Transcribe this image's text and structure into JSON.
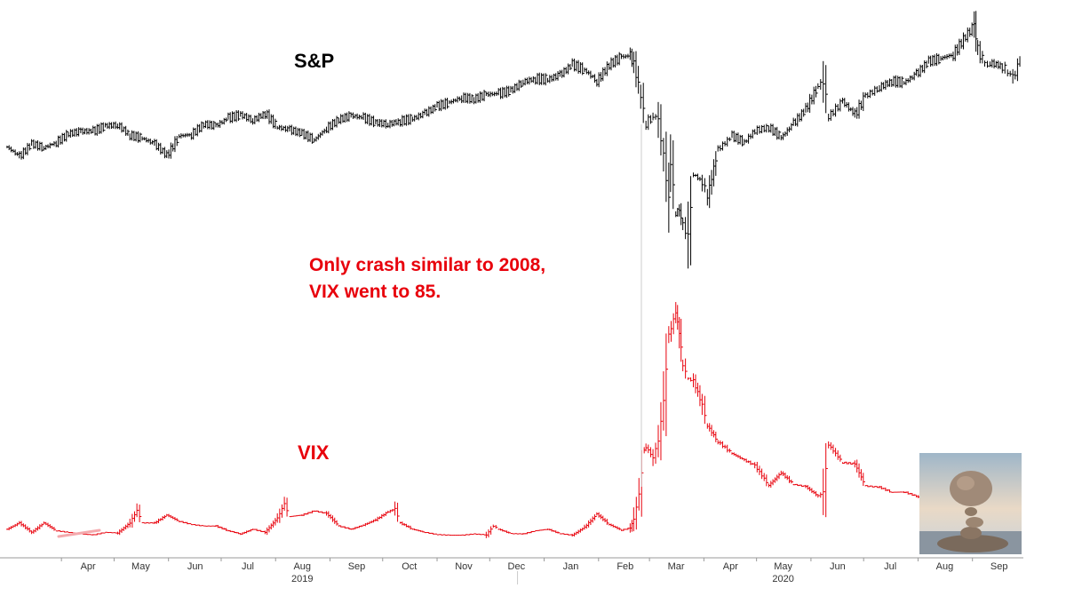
{
  "chart_data": [
    {
      "type": "ohlc",
      "name": "S&P",
      "label": "S&P",
      "color": "#000000",
      "ylim": [
        2100,
        3600
      ],
      "points": [
        [
          "2019-03-01",
          2805
        ],
        [
          "2019-03-08",
          2745
        ],
        [
          "2019-03-15",
          2825
        ],
        [
          "2019-03-22",
          2800
        ],
        [
          "2019-03-29",
          2835
        ],
        [
          "2019-04-05",
          2890
        ],
        [
          "2019-04-12",
          2905
        ],
        [
          "2019-04-19",
          2905
        ],
        [
          "2019-04-26",
          2940
        ],
        [
          "2019-05-03",
          2945
        ],
        [
          "2019-05-10",
          2880
        ],
        [
          "2019-05-17",
          2860
        ],
        [
          "2019-05-24",
          2825
        ],
        [
          "2019-05-31",
          2750
        ],
        [
          "2019-06-07",
          2875
        ],
        [
          "2019-06-14",
          2885
        ],
        [
          "2019-06-21",
          2950
        ],
        [
          "2019-06-28",
          2940
        ],
        [
          "2019-07-05",
          2990
        ],
        [
          "2019-07-12",
          3010
        ],
        [
          "2019-07-19",
          2975
        ],
        [
          "2019-07-26",
          3020
        ],
        [
          "2019-08-02",
          2930
        ],
        [
          "2019-08-09",
          2915
        ],
        [
          "2019-08-16",
          2890
        ],
        [
          "2019-08-23",
          2850
        ],
        [
          "2019-08-30",
          2925
        ],
        [
          "2019-09-06",
          2980
        ],
        [
          "2019-09-13",
          3005
        ],
        [
          "2019-09-20",
          2990
        ],
        [
          "2019-09-27",
          2960
        ],
        [
          "2019-10-04",
          2950
        ],
        [
          "2019-10-11",
          2970
        ],
        [
          "2019-10-18",
          2985
        ],
        [
          "2019-10-25",
          3020
        ],
        [
          "2019-11-01",
          3065
        ],
        [
          "2019-11-08",
          3090
        ],
        [
          "2019-11-15",
          3120
        ],
        [
          "2019-11-22",
          3110
        ],
        [
          "2019-11-29",
          3140
        ],
        [
          "2019-12-06",
          3145
        ],
        [
          "2019-12-13",
          3165
        ],
        [
          "2019-12-20",
          3220
        ],
        [
          "2019-12-27",
          3240
        ],
        [
          "2020-01-03",
          3235
        ],
        [
          "2020-01-10",
          3265
        ],
        [
          "2020-01-17",
          3330
        ],
        [
          "2020-01-24",
          3295
        ],
        [
          "2020-01-31",
          3225
        ],
        [
          "2020-02-07",
          3330
        ],
        [
          "2020-02-14",
          3380
        ],
        [
          "2020-02-19",
          3386
        ],
        [
          "2020-02-21",
          3335
        ],
        [
          "2020-02-25",
          3130
        ],
        [
          "2020-02-28",
          2955
        ],
        [
          "2020-03-03",
          3005
        ],
        [
          "2020-03-06",
          2970
        ],
        [
          "2020-03-09",
          2745
        ],
        [
          "2020-03-12",
          2480
        ],
        [
          "2020-03-13",
          2710
        ],
        [
          "2020-03-16",
          2385
        ],
        [
          "2020-03-18",
          2400
        ],
        [
          "2020-03-20",
          2305
        ],
        [
          "2020-03-23",
          2237
        ],
        [
          "2020-03-26",
          2630
        ],
        [
          "2020-03-31",
          2585
        ],
        [
          "2020-04-03",
          2490
        ],
        [
          "2020-04-09",
          2790
        ],
        [
          "2020-04-17",
          2875
        ],
        [
          "2020-04-24",
          2835
        ],
        [
          "2020-04-30",
          2910
        ],
        [
          "2020-05-08",
          2930
        ],
        [
          "2020-05-15",
          2865
        ],
        [
          "2020-05-22",
          2955
        ],
        [
          "2020-05-29",
          3045
        ],
        [
          "2020-06-05",
          3195
        ],
        [
          "2020-06-08",
          3232
        ],
        [
          "2020-06-11",
          3000
        ],
        [
          "2020-06-19",
          3095
        ],
        [
          "2020-06-26",
          3010
        ],
        [
          "2020-07-02",
          3130
        ],
        [
          "2020-07-10",
          3185
        ],
        [
          "2020-07-17",
          3225
        ],
        [
          "2020-07-24",
          3215
        ],
        [
          "2020-07-31",
          3270
        ],
        [
          "2020-08-07",
          3350
        ],
        [
          "2020-08-14",
          3370
        ],
        [
          "2020-08-21",
          3395
        ],
        [
          "2020-08-28",
          3510
        ],
        [
          "2020-09-02",
          3580
        ],
        [
          "2020-09-04",
          3425
        ],
        [
          "2020-09-08",
          3330
        ],
        [
          "2020-09-11",
          3340
        ],
        [
          "2020-09-18",
          3320
        ],
        [
          "2020-09-21",
          3280
        ],
        [
          "2020-09-24",
          3245
        ],
        [
          "2020-09-28",
          3350
        ]
      ]
    },
    {
      "type": "ohlc",
      "name": "VIX",
      "label": "VIX",
      "color": "#e8000b",
      "ylim": [
        10,
        86
      ],
      "points": [
        [
          "2019-03-01",
          14
        ],
        [
          "2019-03-08",
          16
        ],
        [
          "2019-03-15",
          13
        ],
        [
          "2019-03-22",
          16
        ],
        [
          "2019-03-29",
          13.5
        ],
        [
          "2019-04-05",
          13
        ],
        [
          "2019-04-12",
          12.5
        ],
        [
          "2019-04-19",
          12.2
        ],
        [
          "2019-04-26",
          13
        ],
        [
          "2019-05-03",
          12.8
        ],
        [
          "2019-05-10",
          16
        ],
        [
          "2019-05-14",
          20
        ],
        [
          "2019-05-17",
          16
        ],
        [
          "2019-05-24",
          16
        ],
        [
          "2019-05-31",
          18.5
        ],
        [
          "2019-06-07",
          16.5
        ],
        [
          "2019-06-14",
          15.5
        ],
        [
          "2019-06-21",
          15
        ],
        [
          "2019-06-28",
          15
        ],
        [
          "2019-07-05",
          13.5
        ],
        [
          "2019-07-12",
          12.5
        ],
        [
          "2019-07-19",
          14
        ],
        [
          "2019-07-26",
          13
        ],
        [
          "2019-08-02",
          17.5
        ],
        [
          "2019-08-06",
          22
        ],
        [
          "2019-08-09",
          18
        ],
        [
          "2019-08-16",
          18.5
        ],
        [
          "2019-08-23",
          19.8
        ],
        [
          "2019-08-30",
          19
        ],
        [
          "2019-09-06",
          15
        ],
        [
          "2019-09-13",
          14
        ],
        [
          "2019-09-20",
          15.3
        ],
        [
          "2019-09-27",
          17
        ],
        [
          "2019-10-04",
          19.5
        ],
        [
          "2019-10-08",
          20.5
        ],
        [
          "2019-10-11",
          16
        ],
        [
          "2019-10-18",
          14
        ],
        [
          "2019-10-25",
          13
        ],
        [
          "2019-11-01",
          12.3
        ],
        [
          "2019-11-08",
          12.1
        ],
        [
          "2019-11-15",
          12.1
        ],
        [
          "2019-11-22",
          12.5
        ],
        [
          "2019-11-29",
          12.2
        ],
        [
          "2019-12-03",
          15
        ],
        [
          "2019-12-06",
          14
        ],
        [
          "2019-12-13",
          12.6
        ],
        [
          "2019-12-20",
          12.5
        ],
        [
          "2019-12-27",
          13.5
        ],
        [
          "2020-01-03",
          14
        ],
        [
          "2020-01-10",
          12.6
        ],
        [
          "2020-01-17",
          12.1
        ],
        [
          "2020-01-24",
          14.6
        ],
        [
          "2020-01-31",
          18.8
        ],
        [
          "2020-02-07",
          15.5
        ],
        [
          "2020-02-14",
          13.7
        ],
        [
          "2020-02-19",
          14.4
        ],
        [
          "2020-02-21",
          17.1
        ],
        [
          "2020-02-24",
          25
        ],
        [
          "2020-02-27",
          39
        ],
        [
          "2020-02-28",
          40
        ],
        [
          "2020-03-03",
          36.8
        ],
        [
          "2020-03-06",
          41.9
        ],
        [
          "2020-03-09",
          54.5
        ],
        [
          "2020-03-12",
          75.5
        ],
        [
          "2020-03-16",
          82.7
        ],
        [
          "2020-03-18",
          76.5
        ],
        [
          "2020-03-20",
          66
        ],
        [
          "2020-03-23",
          61.6
        ],
        [
          "2020-03-26",
          61
        ],
        [
          "2020-03-31",
          53.5
        ],
        [
          "2020-04-03",
          46.8
        ],
        [
          "2020-04-09",
          41.7
        ],
        [
          "2020-04-17",
          38
        ],
        [
          "2020-04-24",
          35.9
        ],
        [
          "2020-04-30",
          34.2
        ],
        [
          "2020-05-08",
          27.9
        ],
        [
          "2020-05-15",
          31.9
        ],
        [
          "2020-05-22",
          28.2
        ],
        [
          "2020-05-29",
          27.5
        ],
        [
          "2020-06-05",
          24.5
        ],
        [
          "2020-06-08",
          25.8
        ],
        [
          "2020-06-11",
          40.8
        ],
        [
          "2020-06-19",
          35.1
        ],
        [
          "2020-06-26",
          34.7
        ],
        [
          "2020-07-02",
          27.7
        ],
        [
          "2020-07-10",
          27.3
        ],
        [
          "2020-07-17",
          25.7
        ],
        [
          "2020-07-24",
          25.8
        ],
        [
          "2020-07-31",
          24.5
        ],
        [
          "2020-08-07",
          22.2
        ],
        [
          "2020-08-14",
          22.1
        ],
        [
          "2020-08-21",
          22.5
        ],
        [
          "2020-08-28",
          22.9
        ],
        [
          "2020-09-02",
          26.6
        ],
        [
          "2020-09-04",
          30.8
        ],
        [
          "2020-09-08",
          31.5
        ],
        [
          "2020-09-11",
          26.9
        ],
        [
          "2020-09-18",
          25.8
        ],
        [
          "2020-09-21",
          27.8
        ],
        [
          "2020-09-24",
          28.5
        ],
        [
          "2020-09-28",
          26.2
        ]
      ]
    }
  ],
  "annotation": {
    "line1": "Only crash similar to 2008,",
    "line2": "VIX went to 85."
  },
  "x_axis": {
    "date_range": [
      "2019-02-25",
      "2020-09-30"
    ],
    "month_ticks": [
      {
        "label": "Apr",
        "date": "2019-04-01"
      },
      {
        "label": "May",
        "date": "2019-05-01"
      },
      {
        "label": "Jun",
        "date": "2019-06-01"
      },
      {
        "label": "Jul",
        "date": "2019-07-01"
      },
      {
        "label": "Aug",
        "date": "2019-08-01"
      },
      {
        "label": "Sep",
        "date": "2019-09-01"
      },
      {
        "label": "Oct",
        "date": "2019-10-01"
      },
      {
        "label": "Nov",
        "date": "2019-11-01"
      },
      {
        "label": "Dec",
        "date": "2019-12-01"
      },
      {
        "label": "Jan",
        "date": "2020-01-01"
      },
      {
        "label": "Feb",
        "date": "2020-02-01"
      },
      {
        "label": "Mar",
        "date": "2020-03-01"
      },
      {
        "label": "Apr",
        "date": "2020-04-01"
      },
      {
        "label": "May",
        "date": "2020-05-01"
      },
      {
        "label": "Jun",
        "date": "2020-06-01"
      },
      {
        "label": "Jul",
        "date": "2020-07-01"
      },
      {
        "label": "Aug",
        "date": "2020-08-01"
      },
      {
        "label": "Sep",
        "date": "2020-09-01"
      }
    ],
    "year_labels": [
      {
        "label": "2019",
        "date": "2019-08-01"
      },
      {
        "label": "2020",
        "date": "2020-05-01"
      }
    ],
    "year_divider_date": "2020-01-01"
  },
  "thumbnail": {
    "icon": "balanced-rocks-photo-icon"
  },
  "colors": {
    "sp": "#000000",
    "vix": "#e8000b",
    "axis": "#999999",
    "annotation": "#e8000b"
  },
  "grid": false,
  "legend": "none"
}
